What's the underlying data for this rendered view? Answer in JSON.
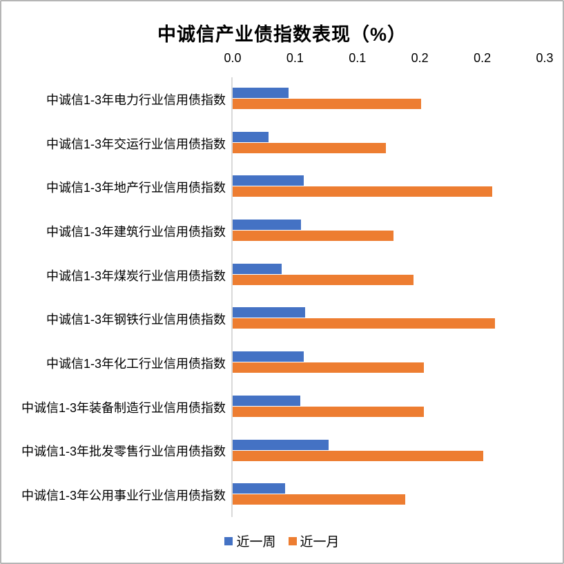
{
  "chart": {
    "border_color": "#b5b5b5",
    "axis_line_color": "#d9d9d9",
    "background": "#ffffff"
  },
  "chart_data": {
    "type": "bar",
    "orientation": "horizontal",
    "title": "中诚信产业债指数表现（%）",
    "categories": [
      "中诚信1-3年电力行业信用债指数",
      "中诚信1-3年交运行业信用债指数",
      "中诚信1-3年地产行业信用债指数",
      "中诚信1-3年建筑行业信用债指数",
      "中诚信1-3年煤炭行业信用债指数",
      "中诚信1-3年钢铁行业信用债指数",
      "中诚信1-3年化工行业信用债指数",
      "中诚信1-3年装备制造行业信用债指数",
      "中诚信1-3年批发零售行业信用债指数",
      "中诚信1-3年公用事业行业信用债指数"
    ],
    "series": [
      {
        "name": "近一周",
        "color": "#4472C4",
        "values": [
          0.045,
          0.029,
          0.057,
          0.055,
          0.039,
          0.058,
          0.057,
          0.054,
          0.077,
          0.042
        ]
      },
      {
        "name": "近一月",
        "color": "#ED7D31",
        "values": [
          0.151,
          0.123,
          0.208,
          0.129,
          0.145,
          0.21,
          0.153,
          0.153,
          0.201,
          0.138
        ]
      }
    ],
    "xlabel": "",
    "ylabel": "",
    "xlim": [
      0,
      0.25
    ],
    "x_ticks": [
      0,
      0.05,
      0.1,
      0.15,
      0.2,
      0.25
    ],
    "x_tick_labels": [
      "0.0",
      "0.1",
      "0.1",
      "0.2",
      "0.2",
      "0.3"
    ],
    "grid": false,
    "legend_position": "bottom"
  }
}
